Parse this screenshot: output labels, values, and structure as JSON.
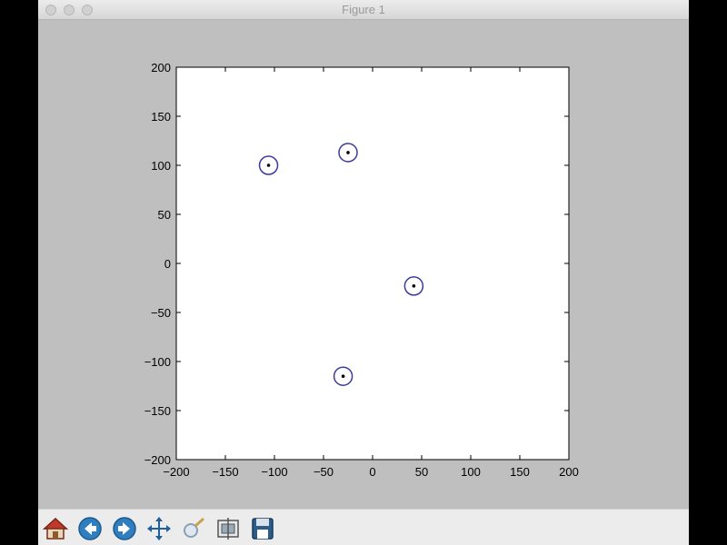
{
  "window": {
    "title": "Figure 1"
  },
  "toolbar": {
    "buttons": [
      {
        "name": "home-button",
        "icon": "home-icon"
      },
      {
        "name": "back-button",
        "icon": "back-arrow-icon"
      },
      {
        "name": "forward-button",
        "icon": "forward-arrow-icon"
      },
      {
        "name": "pan-button",
        "icon": "pan-icon"
      },
      {
        "name": "zoom-button",
        "icon": "zoom-icon"
      },
      {
        "name": "configure-subplots-button",
        "icon": "subplots-icon"
      },
      {
        "name": "save-button",
        "icon": "save-icon"
      }
    ]
  },
  "colors": {
    "marker": "#3a3a9a",
    "axes_bg": "#ffffff",
    "figure_bg": "#bfbfbf"
  },
  "chart_data": {
    "type": "scatter",
    "title": "",
    "xlabel": "",
    "ylabel": "",
    "xlim": [
      -200,
      200
    ],
    "ylim": [
      -200,
      200
    ],
    "xticks": [
      -200,
      -150,
      -100,
      -50,
      0,
      50,
      100,
      150,
      200
    ],
    "yticks": [
      -200,
      -150,
      -100,
      -50,
      0,
      50,
      100,
      150,
      200
    ],
    "xtick_labels": [
      "−200",
      "−150",
      "−100",
      "−50",
      "0",
      "50",
      "100",
      "150",
      "200"
    ],
    "ytick_labels": [
      "−200",
      "−150",
      "−100",
      "−50",
      "0",
      "50",
      "100",
      "150",
      "200"
    ],
    "grid": false,
    "series": [
      {
        "name": "points",
        "marker": "dot-in-circle",
        "points": [
          {
            "x": -106,
            "y": 100
          },
          {
            "x": -25,
            "y": 113
          },
          {
            "x": 42,
            "y": -23
          },
          {
            "x": -30,
            "y": -115
          }
        ]
      }
    ]
  }
}
